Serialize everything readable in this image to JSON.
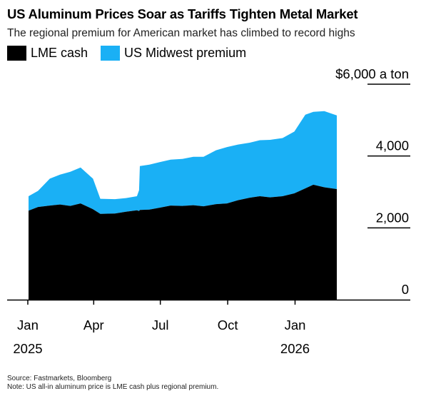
{
  "title": "US Aluminum Prices Soar as Tariffs Tighten Metal Market",
  "subtitle": "The regional premium for American market has climbed to record highs",
  "legend": [
    {
      "label": "LME cash",
      "color": "#000000"
    },
    {
      "label": "US Midwest premium",
      "color": "#1ab0f5"
    }
  ],
  "chart_data": {
    "type": "area",
    "stacked": true,
    "y_unit": "$ a ton",
    "ylim": [
      0,
      6000
    ],
    "yticks": [
      {
        "value": 6000,
        "label": "$6,000 a ton"
      },
      {
        "value": 4000,
        "label": "4,000"
      },
      {
        "value": 2000,
        "label": "2,000"
      },
      {
        "value": 0,
        "label": "0"
      }
    ],
    "xlim": [
      "2025-01-02",
      "2026-02-28"
    ],
    "xticks": [
      {
        "date": "2025-01-01",
        "label": "Jan",
        "year": "2025"
      },
      {
        "date": "2025-04-01",
        "label": "Apr",
        "year": ""
      },
      {
        "date": "2025-07-01",
        "label": "Jul",
        "year": ""
      },
      {
        "date": "2025-10-01",
        "label": "Oct",
        "year": ""
      },
      {
        "date": "2026-01-01",
        "label": "Jan",
        "year": "2026"
      }
    ],
    "dates": [
      "2025-01-02",
      "2025-01-15",
      "2025-01-31",
      "2025-02-14",
      "2025-02-28",
      "2025-03-14",
      "2025-03-31",
      "2025-04-10",
      "2025-04-30",
      "2025-05-15",
      "2025-05-30",
      "2025-06-02",
      "2025-06-03",
      "2025-06-16",
      "2025-06-30",
      "2025-07-15",
      "2025-07-31",
      "2025-08-15",
      "2025-08-29",
      "2025-09-15",
      "2025-09-30",
      "2025-10-15",
      "2025-10-31",
      "2025-11-14",
      "2025-11-28",
      "2025-12-15",
      "2025-12-31",
      "2026-01-15",
      "2026-01-26",
      "2026-02-10",
      "2026-02-27"
    ],
    "series": [
      {
        "name": "LME cash",
        "color": "#000000",
        "values": [
          2480,
          2580,
          2620,
          2650,
          2610,
          2680,
          2520,
          2390,
          2400,
          2450,
          2490,
          2470,
          2500,
          2510,
          2560,
          2620,
          2610,
          2630,
          2600,
          2660,
          2680,
          2770,
          2840,
          2880,
          2850,
          2880,
          2960,
          3100,
          3200,
          3130,
          3080
        ]
      },
      {
        "name": "US Midwest premium",
        "color": "#1ab0f5",
        "values": [
          400,
          450,
          750,
          830,
          950,
          1000,
          850,
          420,
          400,
          380,
          390,
          580,
          1220,
          1250,
          1270,
          1280,
          1310,
          1350,
          1380,
          1500,
          1570,
          1550,
          1530,
          1560,
          1600,
          1620,
          1720,
          2050,
          2030,
          2120,
          2050
        ]
      }
    ]
  },
  "footer": {
    "source": "Source: Fastmarkets, Bloomberg",
    "note": "Note: US all-in aluminum price is LME cash plus regional premium."
  }
}
